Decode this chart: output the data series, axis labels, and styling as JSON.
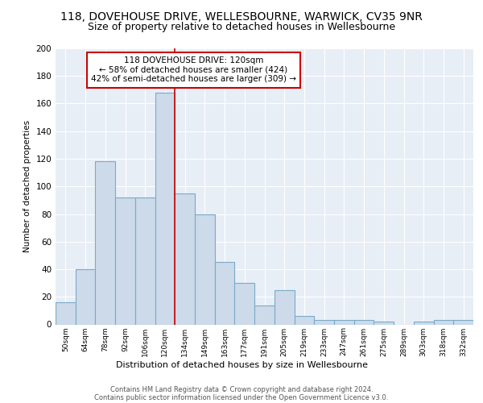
{
  "title_line1": "118, DOVEHOUSE DRIVE, WELLESBOURNE, WARWICK, CV35 9NR",
  "title_line2": "Size of property relative to detached houses in Wellesbourne",
  "xlabel": "Distribution of detached houses by size in Wellesbourne",
  "ylabel": "Number of detached properties",
  "categories": [
    "50sqm",
    "64sqm",
    "78sqm",
    "92sqm",
    "106sqm",
    "120sqm",
    "134sqm",
    "149sqm",
    "163sqm",
    "177sqm",
    "191sqm",
    "205sqm",
    "219sqm",
    "233sqm",
    "247sqm",
    "261sqm",
    "275sqm",
    "289sqm",
    "303sqm",
    "318sqm",
    "332sqm"
  ],
  "values": [
    16,
    40,
    118,
    92,
    92,
    168,
    95,
    80,
    45,
    30,
    14,
    25,
    6,
    3,
    3,
    3,
    2,
    0,
    2,
    3,
    3
  ],
  "highlight_index": 5,
  "bar_color": "#ccdaea",
  "bar_edge_color": "#7aaac8",
  "highlight_line_color": "#cc0000",
  "ylim": [
    0,
    200
  ],
  "yticks": [
    0,
    20,
    40,
    60,
    80,
    100,
    120,
    140,
    160,
    180,
    200
  ],
  "annotation_text": "118 DOVEHOUSE DRIVE: 120sqm\n← 58% of detached houses are smaller (424)\n42% of semi-detached houses are larger (309) →",
  "annotation_box_color": "#ffffff",
  "annotation_box_edge": "#cc0000",
  "footnote1": "Contains HM Land Registry data © Crown copyright and database right 2024.",
  "footnote2": "Contains public sector information licensed under the Open Government Licence v3.0.",
  "background_color": "#ffffff",
  "plot_bg_color": "#e8eef6",
  "grid_color": "#ffffff",
  "title1_fontsize": 10,
  "title2_fontsize": 9
}
